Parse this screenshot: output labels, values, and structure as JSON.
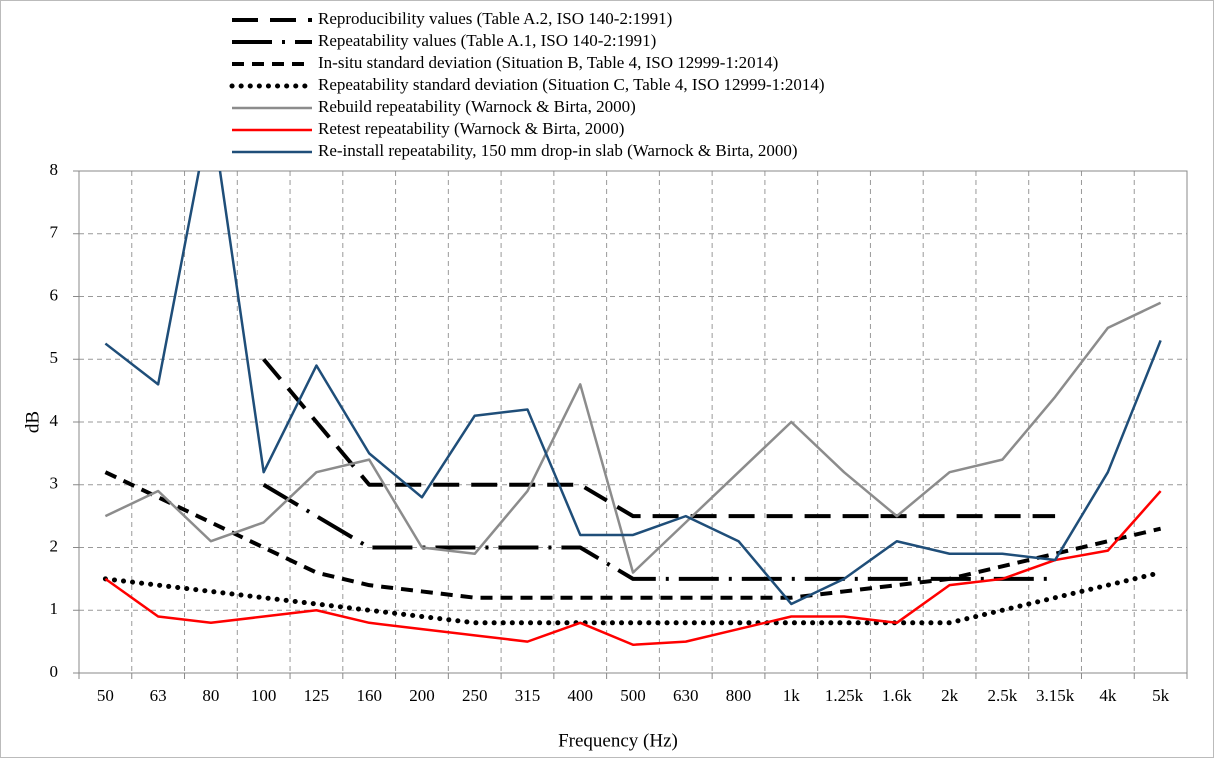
{
  "chart_data": {
    "type": "line",
    "x_label": "Frequency (Hz)",
    "y_label": "dB",
    "categories": [
      "50",
      "63",
      "80",
      "100",
      "125",
      "160",
      "200",
      "250",
      "315",
      "400",
      "500",
      "630",
      "800",
      "1k",
      "1.25k",
      "1.6k",
      "2k",
      "2.5k",
      "3.15k",
      "4k",
      "5k"
    ],
    "ylim": [
      0,
      8
    ],
    "yticks": [
      0,
      1,
      2,
      3,
      4,
      5,
      6,
      7,
      8
    ],
    "grid": true,
    "legend": "top",
    "series": [
      {
        "name": "Reproducibility values (Table A.2, ISO 140-2:1991)",
        "color": "#000000",
        "dash": "long",
        "values": [
          null,
          null,
          null,
          5.0,
          4.0,
          3.0,
          3.0,
          3.0,
          3.0,
          3.0,
          2.5,
          2.5,
          2.5,
          2.5,
          2.5,
          2.5,
          2.5,
          2.5,
          2.5,
          null,
          null
        ]
      },
      {
        "name": "Repeatability values (Table A.1, ISO 140-2:1991)",
        "color": "#000000",
        "dash": "long-dot",
        "values": [
          null,
          null,
          null,
          3.0,
          2.5,
          2.0,
          2.0,
          2.0,
          2.0,
          2.0,
          1.5,
          1.5,
          1.5,
          1.5,
          1.5,
          1.5,
          1.5,
          1.5,
          1.5,
          null,
          null
        ]
      },
      {
        "name": "In-situ standard deviation (Situation B, Table 4, ISO 12999-1:2014)",
        "color": "#000000",
        "dash": "short",
        "values": [
          3.2,
          2.8,
          2.4,
          2.0,
          1.6,
          1.4,
          1.3,
          1.2,
          1.2,
          1.2,
          1.2,
          1.2,
          1.2,
          1.2,
          1.3,
          1.4,
          1.5,
          1.7,
          1.9,
          2.1,
          2.3
        ]
      },
      {
        "name": "Repeatability standard deviation (Situation C, Table 4, ISO 12999-1:2014)",
        "color": "#000000",
        "dash": "dot",
        "values": [
          1.5,
          1.4,
          1.3,
          1.2,
          1.1,
          1.0,
          0.9,
          0.8,
          0.8,
          0.8,
          0.8,
          0.8,
          0.8,
          0.8,
          0.8,
          0.8,
          0.8,
          1.0,
          1.2,
          1.4,
          1.6
        ]
      },
      {
        "name": "Rebuild repeatability (Warnock & Birta, 2000)",
        "color": "#8c8c8c",
        "dash": "solid",
        "values": [
          2.5,
          2.9,
          2.1,
          2.4,
          3.2,
          3.4,
          2.0,
          1.9,
          2.9,
          4.6,
          1.6,
          2.4,
          3.2,
          4.0,
          3.2,
          2.5,
          3.2,
          3.4,
          4.4,
          5.5,
          5.9
        ]
      },
      {
        "name": "Retest repeatability (Warnock & Birta, 2000)",
        "color": "#ff0000",
        "dash": "solid",
        "values": [
          1.5,
          0.9,
          0.8,
          0.9,
          1.0,
          0.8,
          0.7,
          0.6,
          0.5,
          0.8,
          0.45,
          0.5,
          0.7,
          0.9,
          0.9,
          0.8,
          1.4,
          1.5,
          1.8,
          1.95,
          2.9
        ]
      },
      {
        "name": "Re-install repeatability, 150 mm drop-in slab  (Warnock & Birta, 2000)",
        "color": "#1f4e79",
        "dash": "solid",
        "values": [
          5.25,
          4.6,
          9.0,
          3.2,
          4.9,
          3.5,
          2.8,
          4.1,
          4.2,
          2.2,
          2.2,
          2.5,
          2.1,
          1.1,
          1.5,
          2.1,
          1.9,
          1.9,
          1.8,
          3.2,
          5.3
        ]
      }
    ]
  }
}
